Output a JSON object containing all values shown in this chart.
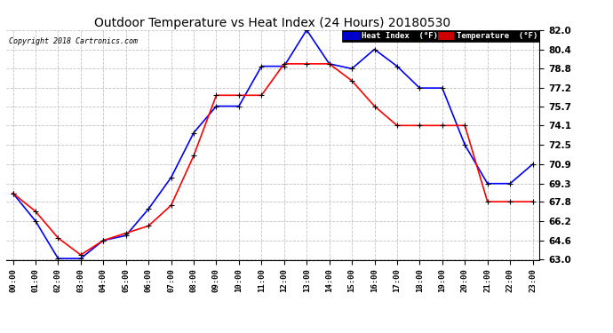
{
  "title": "Outdoor Temperature vs Heat Index (24 Hours) 20180530",
  "copyright": "Copyright 2018 Cartronics.com",
  "background_color": "#ffffff",
  "plot_bg_color": "#ffffff",
  "grid_color": "#bbbbbb",
  "x_labels": [
    "00:00",
    "01:00",
    "02:00",
    "03:00",
    "04:00",
    "05:00",
    "06:00",
    "07:00",
    "08:00",
    "09:00",
    "10:00",
    "11:00",
    "12:00",
    "13:00",
    "14:00",
    "15:00",
    "16:00",
    "17:00",
    "18:00",
    "19:00",
    "20:00",
    "21:00",
    "22:00",
    "23:00"
  ],
  "y_ticks": [
    63.0,
    64.6,
    66.2,
    67.8,
    69.3,
    70.9,
    72.5,
    74.1,
    75.7,
    77.2,
    78.8,
    80.4,
    82.0
  ],
  "ylim": [
    63.0,
    82.0
  ],
  "heat_index": [
    68.5,
    66.2,
    63.1,
    63.1,
    64.6,
    65.0,
    67.2,
    69.8,
    73.5,
    75.7,
    75.7,
    79.0,
    79.0,
    82.0,
    79.2,
    78.8,
    80.4,
    79.0,
    77.2,
    77.2,
    72.5,
    69.3,
    69.3,
    70.9
  ],
  "temperature": [
    68.5,
    67.0,
    64.8,
    63.4,
    64.6,
    65.2,
    65.8,
    67.5,
    71.6,
    76.6,
    76.6,
    76.6,
    79.2,
    79.2,
    79.2,
    77.8,
    75.7,
    74.1,
    74.1,
    74.1,
    74.1,
    67.8,
    67.8,
    67.8
  ],
  "heat_color": "#0000ff",
  "temp_color": "#ff0000",
  "legend_heat_bg": "#0000cc",
  "legend_temp_bg": "#cc0000",
  "legend_heat_label": "Heat Index  (°F)",
  "legend_temp_label": "Temperature  (°F)"
}
